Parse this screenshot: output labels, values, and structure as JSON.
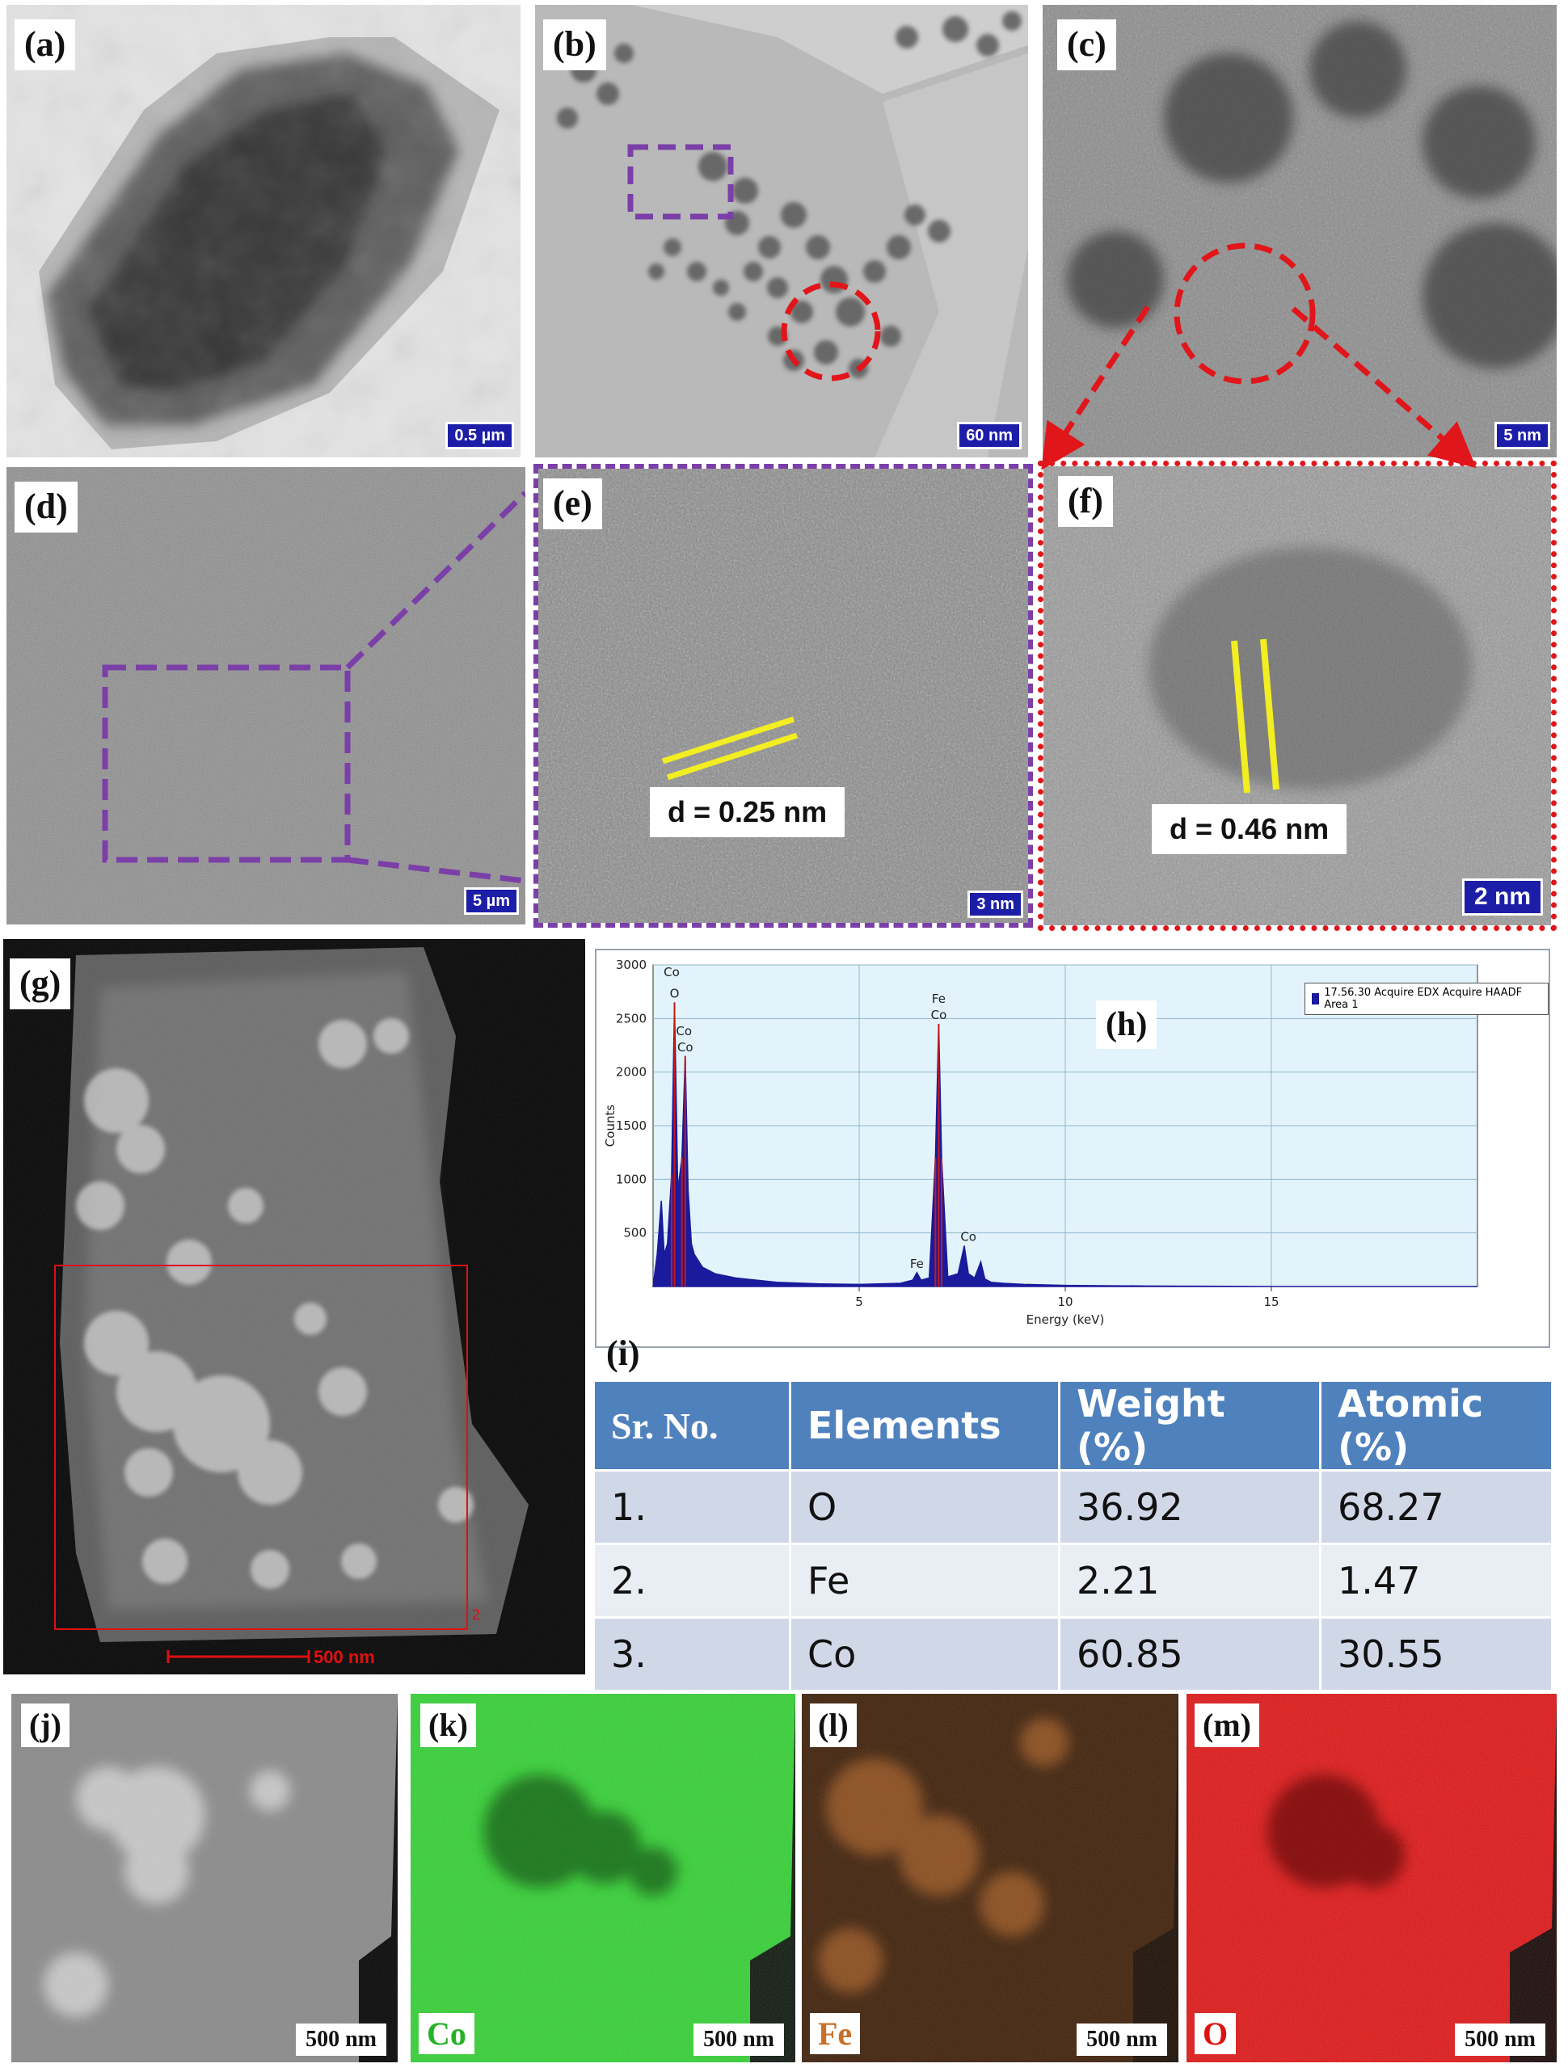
{
  "panels": {
    "a": {
      "label": "(a)",
      "scale": "0.5 µm"
    },
    "b": {
      "label": "(b)",
      "scale": "60 nm"
    },
    "c": {
      "label": "(c)",
      "scale": "5 nm"
    },
    "d": {
      "label": "(d)",
      "scale": "5 µm"
    },
    "e": {
      "label": "(e)",
      "scale": "3 nm",
      "d_spacing": "d = 0.25 nm"
    },
    "f": {
      "label": "(f)",
      "scale": "2 nm",
      "d_spacing": "d = 0.46 nm"
    },
    "g": {
      "label": "(g)",
      "scale": "500 nm",
      "marker": "2"
    },
    "h": {
      "label": "(h)"
    },
    "i": {
      "label": "(i)"
    },
    "j": {
      "label": "(j)",
      "scale": "500 nm"
    },
    "k": {
      "label": "(k)",
      "scale": "500 nm",
      "element": "Co"
    },
    "l": {
      "label": "(l)",
      "scale": "500 nm",
      "element": "Fe"
    },
    "m": {
      "label": "(m)",
      "scale": "500 nm",
      "element": "O"
    }
  },
  "colors": {
    "purple_box": "#7b3fa8",
    "red_box": "#e0161b",
    "yellow_lines": "#f2ee22",
    "co_map": "#2fd12f",
    "fe_map": "#c8702a",
    "o_map": "#e01010",
    "table_header": "#4f81bd"
  },
  "table": {
    "headers": [
      "Sr. No.",
      "Elements",
      "Weight (%)",
      "Atomic (%)"
    ],
    "rows": [
      [
        "1.",
        "O",
        "36.92",
        "68.27"
      ],
      [
        "2.",
        "Fe",
        "2.21",
        "1.47"
      ],
      [
        "3.",
        "Co",
        "60.85",
        "30.55"
      ]
    ]
  },
  "chart_data": {
    "type": "line",
    "title": "",
    "legend": "17.56.30 Acquire EDX Acquire HAADF Area 1",
    "legend_position": "top-right",
    "xlabel": "Energy (keV)",
    "ylabel": "Counts",
    "xlim": [
      0,
      20
    ],
    "ylim": [
      0,
      3000
    ],
    "xticks": [
      5,
      10,
      15
    ],
    "yticks": [
      500,
      1000,
      1500,
      2000,
      2500,
      3000
    ],
    "grid": true,
    "series": [
      {
        "x": [
          0.0,
          0.1,
          0.2,
          0.27,
          0.35,
          0.45,
          0.52,
          0.6,
          0.7,
          0.78,
          0.85,
          0.93,
          1.0,
          1.2,
          1.5,
          2.0,
          3.0,
          4.0,
          5.0,
          6.0,
          6.3,
          6.4,
          6.5,
          6.7,
          6.85,
          6.93,
          7.0,
          7.15,
          7.4,
          7.55,
          7.65,
          7.8,
          7.95,
          8.05,
          8.2,
          8.5,
          9.0,
          10.0,
          12.0,
          15.0,
          20.0
        ],
        "y": [
          0,
          300,
          800,
          300,
          400,
          1050,
          2650,
          900,
          1200,
          2150,
          900,
          400,
          300,
          180,
          120,
          80,
          40,
          25,
          20,
          30,
          60,
          130,
          60,
          80,
          1200,
          2450,
          1200,
          90,
          120,
          380,
          120,
          80,
          230,
          70,
          40,
          30,
          20,
          10,
          5,
          0,
          0
        ]
      }
    ],
    "peak_labels": [
      {
        "x": 0.52,
        "y": 2650,
        "text": "O"
      },
      {
        "x": 0.45,
        "y": 2850,
        "text": "Co"
      },
      {
        "x": 0.78,
        "y": 2150,
        "text": "Co"
      },
      {
        "x": 0.75,
        "y": 2300,
        "text": "Co"
      },
      {
        "x": 6.93,
        "y": 2450,
        "text": "Co"
      },
      {
        "x": 6.93,
        "y": 2600,
        "text": "Fe"
      },
      {
        "x": 6.4,
        "y": 130,
        "text": "Fe"
      },
      {
        "x": 7.65,
        "y": 380,
        "text": "Co"
      }
    ]
  }
}
